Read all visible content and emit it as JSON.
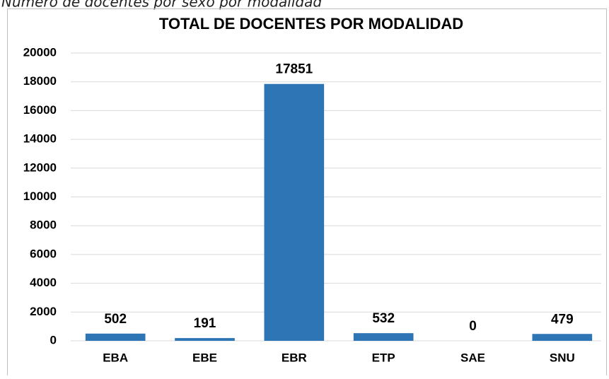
{
  "caption": "Número de docentes por sexo por modalidad",
  "chart_data": {
    "type": "bar",
    "title": "TOTAL DE DOCENTES POR MODALIDAD",
    "categories": [
      "EBA",
      "EBE",
      "EBR",
      "ETP",
      "SAE",
      "SNU"
    ],
    "values": [
      502,
      191,
      17851,
      532,
      0,
      479
    ],
    "color": "#2e75b6",
    "ylim": [
      0,
      20000
    ],
    "yticks": [
      0,
      2000,
      4000,
      6000,
      8000,
      10000,
      12000,
      14000,
      16000,
      18000,
      20000
    ],
    "grid": true
  }
}
